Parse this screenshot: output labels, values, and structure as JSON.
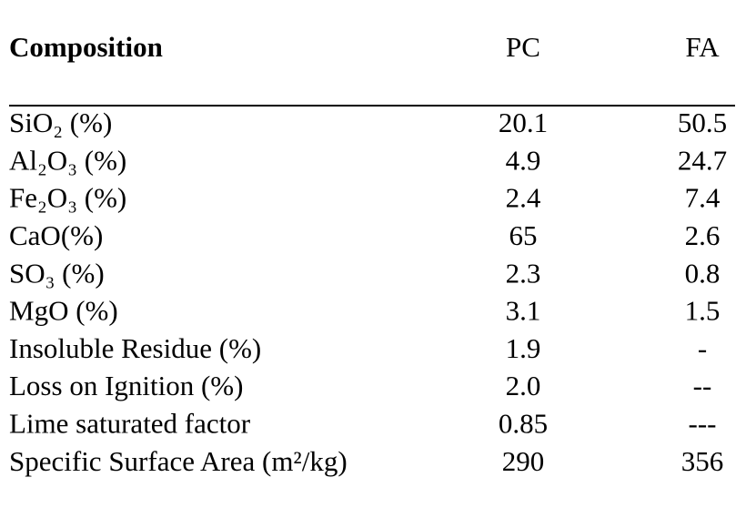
{
  "table": {
    "header": [
      "Composition",
      "PC",
      "FA"
    ],
    "rows": [
      [
        "SiO₂ (%)",
        "20.1",
        "50.5"
      ],
      [
        "Al₂O₃ (%)",
        "4.9",
        "24.7"
      ],
      [
        "Fe₂O₃ (%)",
        "2.4",
        "7.4"
      ],
      [
        "CaO(%)",
        "65",
        "2.6"
      ],
      [
        "SO₃ (%)",
        "2.3",
        "0.8"
      ],
      [
        "MgO (%)",
        "3.1",
        "1.5"
      ],
      [
        "Insoluble Residue (%)",
        "1.9",
        "-"
      ],
      [
        "Loss on Ignition (%)",
        "2.0",
        "--"
      ],
      [
        "Lime saturated factor",
        "0.85",
        "---"
      ],
      [
        "Specific Surface Area (m²/kg)",
        "290",
        "356"
      ]
    ]
  }
}
